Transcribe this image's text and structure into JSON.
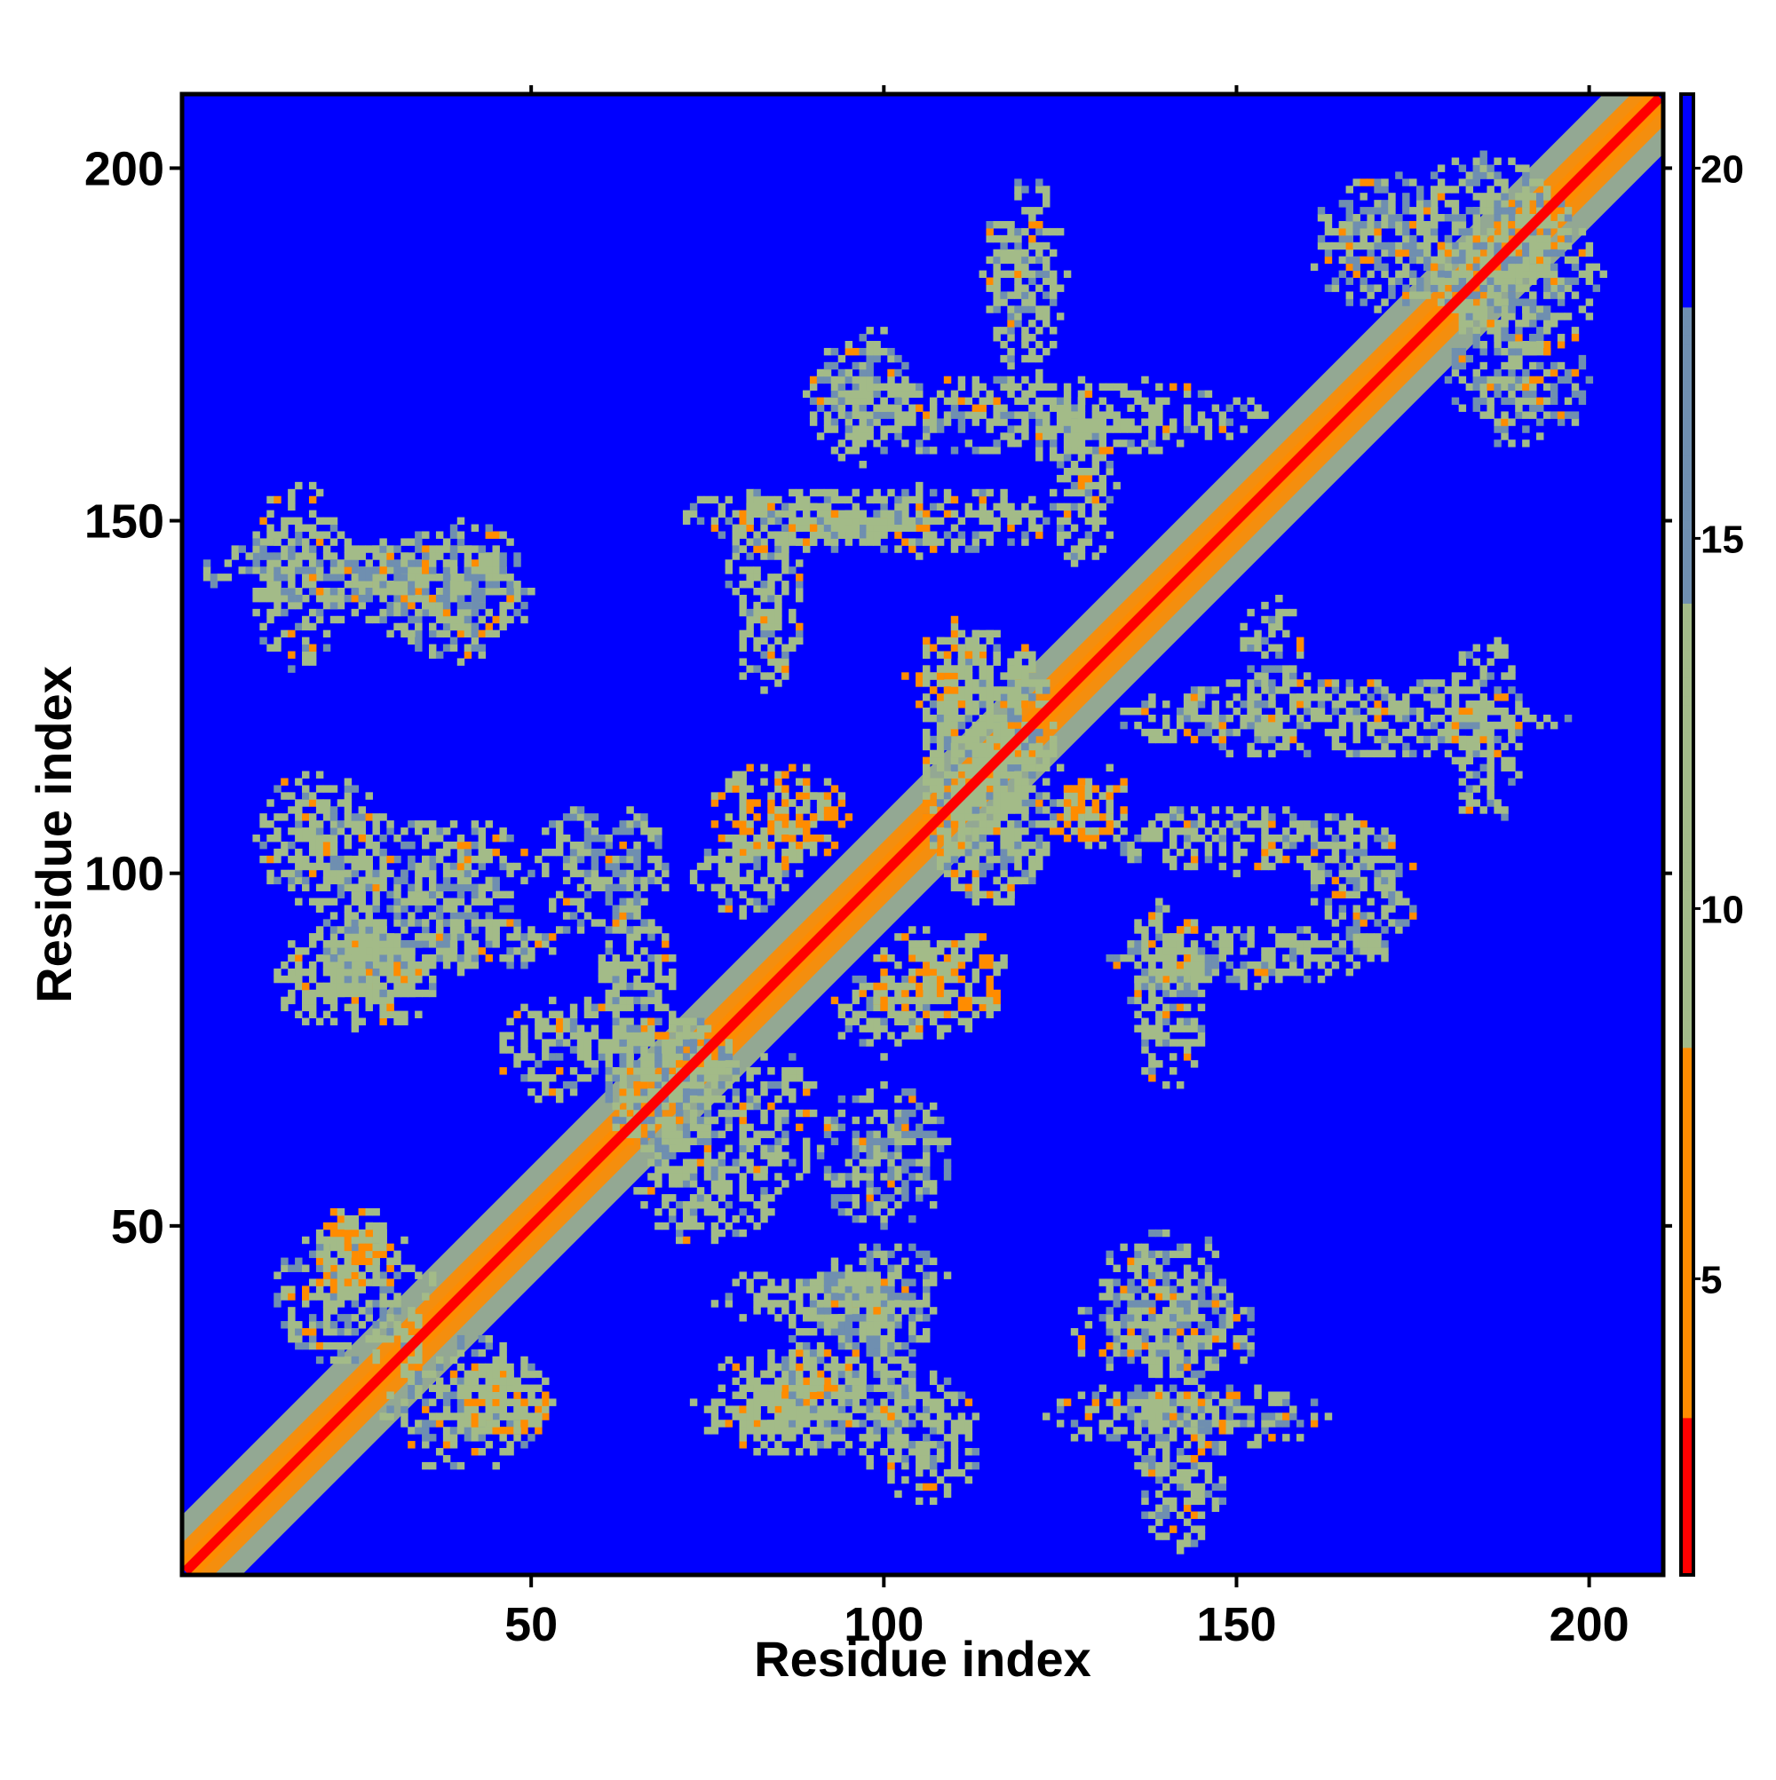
{
  "chart_data": {
    "type": "heatmap",
    "title": "",
    "xlabel": "Residue index",
    "ylabel": "Residue index",
    "xlim": [
      1,
      210
    ],
    "ylim": [
      1,
      210
    ],
    "x_ticks": [
      50,
      100,
      150,
      200
    ],
    "y_ticks": [
      50,
      100,
      150,
      200
    ],
    "colorbar": {
      "range": [
        1,
        21
      ],
      "ticks": [
        5,
        10,
        15,
        20
      ],
      "colors": {
        "contact_near": "#ff0000",
        "contact_mid": "#ff8c00",
        "intermediate": "#a3bb88",
        "far": "#6f8fb0",
        "background": "#0000ff"
      }
    },
    "diagonal": {
      "from": [
        1,
        1
      ],
      "to": [
        210,
        210
      ],
      "value": 1
    },
    "bands": [
      {
        "from": [
          1,
          1
        ],
        "to": [
          210,
          210
        ],
        "half_width": 1.6,
        "value": 4
      },
      {
        "from": [
          1,
          1
        ],
        "to": [
          210,
          210
        ],
        "half_width": 3.2,
        "value": 8
      },
      {
        "from": [
          1,
          1
        ],
        "to": [
          210,
          210
        ],
        "half_width": 6,
        "value": 14
      }
    ],
    "contact_regions": [
      {
        "cx": 17,
        "cy": 142,
        "rx": 7,
        "ry": 14,
        "value": 12
      },
      {
        "cx": 35,
        "cy": 140,
        "rx": 14,
        "ry": 7,
        "value": 13
      },
      {
        "cx": 120,
        "cy": 185,
        "rx": 6,
        "ry": 14,
        "value": 12
      },
      {
        "cx": 97,
        "cy": 168,
        "rx": 8,
        "ry": 10,
        "value": 13
      },
      {
        "cx": 83,
        "cy": 140,
        "rx": 6,
        "ry": 14,
        "value": 12
      },
      {
        "cx": 128,
        "cy": 155,
        "rx": 5,
        "ry": 12,
        "value": 12
      },
      {
        "cx": 110,
        "cy": 130,
        "rx": 5,
        "ry": 6,
        "value": 9
      },
      {
        "cx": 190,
        "cy": 185,
        "rx": 12,
        "ry": 12,
        "value": 13
      },
      {
        "cx": 165,
        "cy": 122,
        "rx": 32,
        "ry": 6,
        "value": 12
      },
      {
        "cx": 150,
        "cy": 105,
        "rx": 20,
        "ry": 5,
        "value": 12
      },
      {
        "cx": 150,
        "cy": 88,
        "rx": 18,
        "ry": 5,
        "value": 12
      },
      {
        "cx": 20,
        "cy": 105,
        "rx": 9,
        "ry": 10,
        "value": 12
      },
      {
        "cx": 40,
        "cy": 100,
        "rx": 10,
        "ry": 8,
        "value": 13
      },
      {
        "cx": 25,
        "cy": 87,
        "rx": 10,
        "ry": 5,
        "value": 9
      },
      {
        "cx": 40,
        "cy": 90,
        "rx": 16,
        "ry": 4,
        "value": 12
      },
      {
        "cx": 25,
        "cy": 48,
        "rx": 5,
        "ry": 5,
        "value": 9
      },
      {
        "cx": 25,
        "cy": 40,
        "rx": 12,
        "ry": 10,
        "value": 13
      },
      {
        "cx": 45,
        "cy": 25,
        "rx": 6,
        "ry": 6,
        "value": 9
      },
      {
        "cx": 85,
        "cy": 25,
        "rx": 12,
        "ry": 8,
        "value": 11
      },
      {
        "cx": 95,
        "cy": 30,
        "rx": 10,
        "ry": 14,
        "value": 13
      },
      {
        "cx": 140,
        "cy": 40,
        "rx": 10,
        "ry": 10,
        "value": 13
      },
      {
        "cx": 143,
        "cy": 23,
        "rx": 20,
        "ry": 5,
        "value": 13
      },
      {
        "cx": 75,
        "cy": 55,
        "rx": 10,
        "ry": 8,
        "value": 12
      },
      {
        "cx": 85,
        "cy": 65,
        "rx": 6,
        "ry": 10,
        "value": 12
      },
      {
        "cx": 100,
        "cy": 80,
        "rx": 8,
        "ry": 6,
        "value": 12
      },
      {
        "cx": 108,
        "cy": 87,
        "rx": 5,
        "ry": 4,
        "value": 8
      },
      {
        "cx": 85,
        "cy": 108,
        "rx": 10,
        "ry": 8,
        "value": 9
      },
      {
        "cx": 115,
        "cy": 115,
        "rx": 10,
        "ry": 20,
        "value": 12
      },
      {
        "cx": 128,
        "cy": 108,
        "rx": 5,
        "ry": 5,
        "value": 8
      },
      {
        "cx": 70,
        "cy": 70,
        "rx": 10,
        "ry": 10,
        "value": 13
      },
      {
        "cx": 60,
        "cy": 100,
        "rx": 10,
        "ry": 10,
        "value": 14
      },
      {
        "cx": 170,
        "cy": 190,
        "rx": 10,
        "ry": 10,
        "value": 14
      }
    ]
  }
}
